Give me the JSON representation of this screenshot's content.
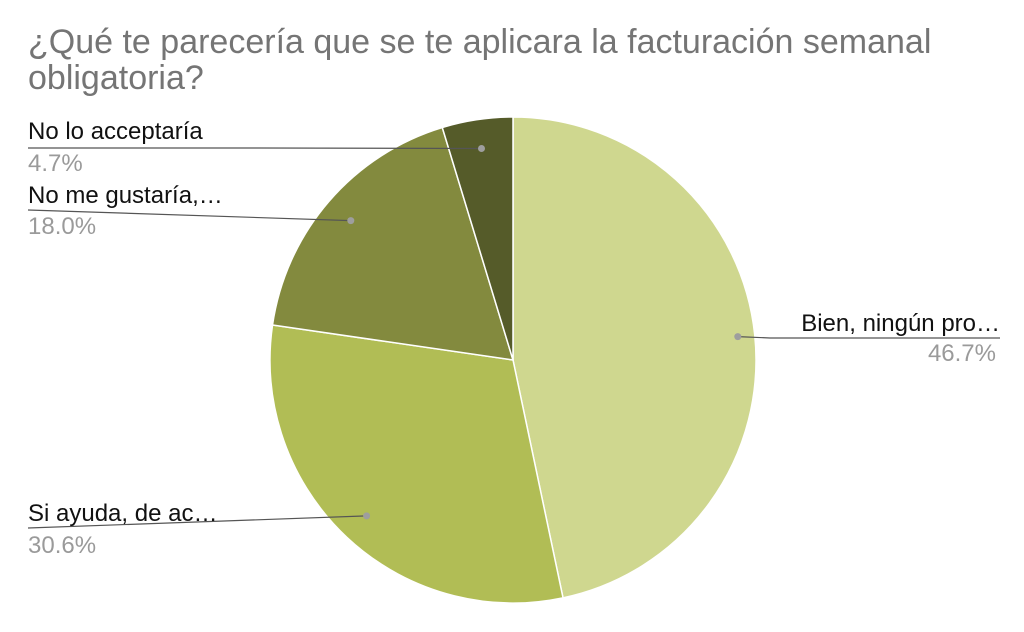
{
  "chart_data": {
    "type": "pie",
    "title": "¿Qué te parecería que se te aplicara la facturación semanal obligatoria?",
    "slices": [
      {
        "label": "Bien, ningún pro…",
        "value": 46.7,
        "pct_label": "46.7%",
        "color": "#cfd78f"
      },
      {
        "label": "Si ayuda, de ac…",
        "value": 30.6,
        "pct_label": "30.6%",
        "color": "#b1bd55"
      },
      {
        "label": "No me gustaría,…",
        "value": 18.0,
        "pct_label": "18.0%",
        "color": "#838a3e"
      },
      {
        "label": "No lo acceptaría",
        "value": 4.7,
        "pct_label": "4.7%",
        "color": "#555b29"
      }
    ],
    "legend": "none",
    "label_style": "callouts"
  }
}
